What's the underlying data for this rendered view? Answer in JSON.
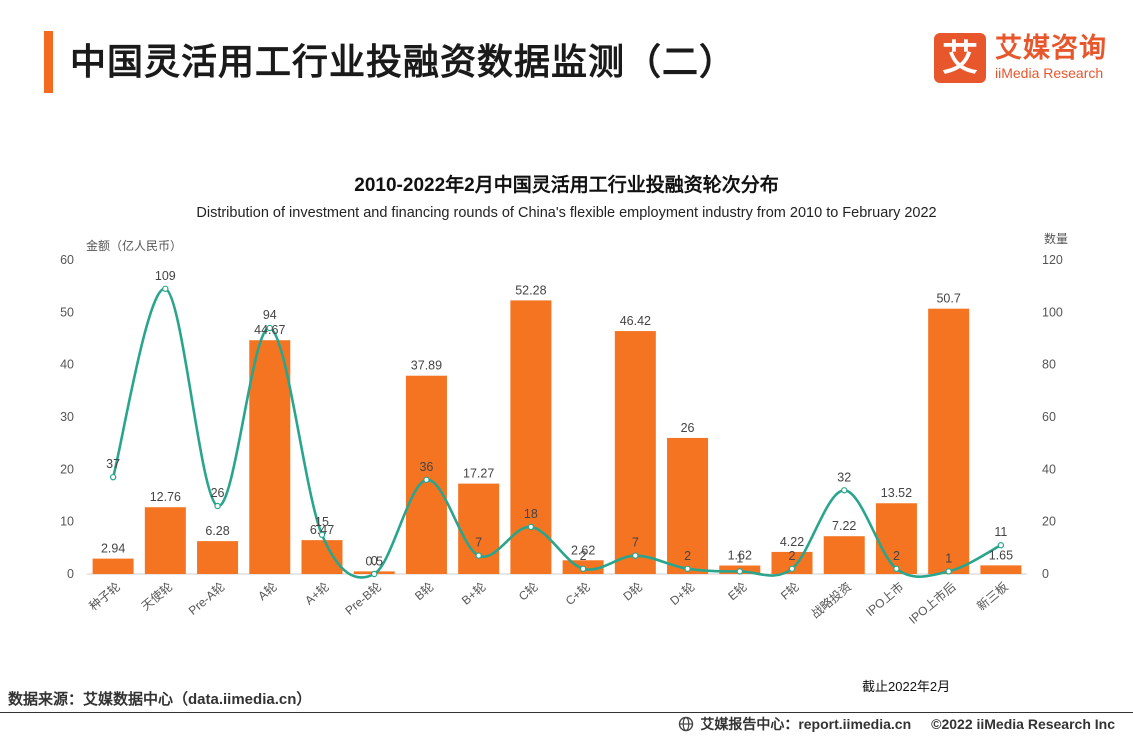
{
  "header": {
    "title": "中国灵活用工行业投融资数据监测（二）",
    "logo_mark": "艾",
    "logo_cn": "艾媒咨询",
    "logo_en": "iiMedia Research"
  },
  "chart_data": {
    "type": "bar",
    "title": "2010-2022年2月中国灵活用工行业投融资轮次分布",
    "subtitle": "Distribution of investment and financing rounds of China's flexible employment industry from 2010 to February 2022",
    "categories": [
      "种子轮",
      "天使轮",
      "Pre-A轮",
      "A轮",
      "A+轮",
      "Pre-B轮",
      "B轮",
      "B+轮",
      "C轮",
      "C+轮",
      "D轮",
      "D+轮",
      "E轮",
      "F轮",
      "战略投资",
      "IPO上市",
      "IPO上市后",
      "新三板"
    ],
    "series": [
      {
        "name": "金额",
        "type": "bar",
        "axis": "left",
        "color": "#f47421",
        "values": [
          2.94,
          12.76,
          6.28,
          44.67,
          6.47,
          0.5,
          37.89,
          17.27,
          52.28,
          2.62,
          46.42,
          26,
          1.62,
          4.22,
          7.22,
          13.52,
          50.7,
          1.65
        ]
      },
      {
        "name": "数量",
        "type": "line",
        "axis": "right",
        "color": "#2aa58d",
        "smooth": true,
        "values": [
          37,
          109,
          26,
          94,
          15,
          0,
          36,
          7,
          18,
          2,
          7,
          2,
          1,
          2,
          32,
          2,
          1,
          11
        ]
      }
    ],
    "y_left": {
      "label": "金额（亿人民币）",
      "min": 0,
      "max": 60,
      "ticks": [
        0,
        10,
        20,
        30,
        40,
        50,
        60
      ]
    },
    "y_right": {
      "label": "数量",
      "min": 0,
      "max": 120,
      "ticks": [
        0,
        20,
        40,
        60,
        80,
        100,
        120
      ]
    },
    "grid": false,
    "data_labels": true
  },
  "notes": {
    "cutoff": "截止2022年2月",
    "source": "数据来源：艾媒数据中心（data.iimedia.cn）"
  },
  "footer": {
    "report_center": "艾媒报告中心：report.iimedia.cn",
    "copyright": "©2022  iiMedia Research  Inc"
  }
}
